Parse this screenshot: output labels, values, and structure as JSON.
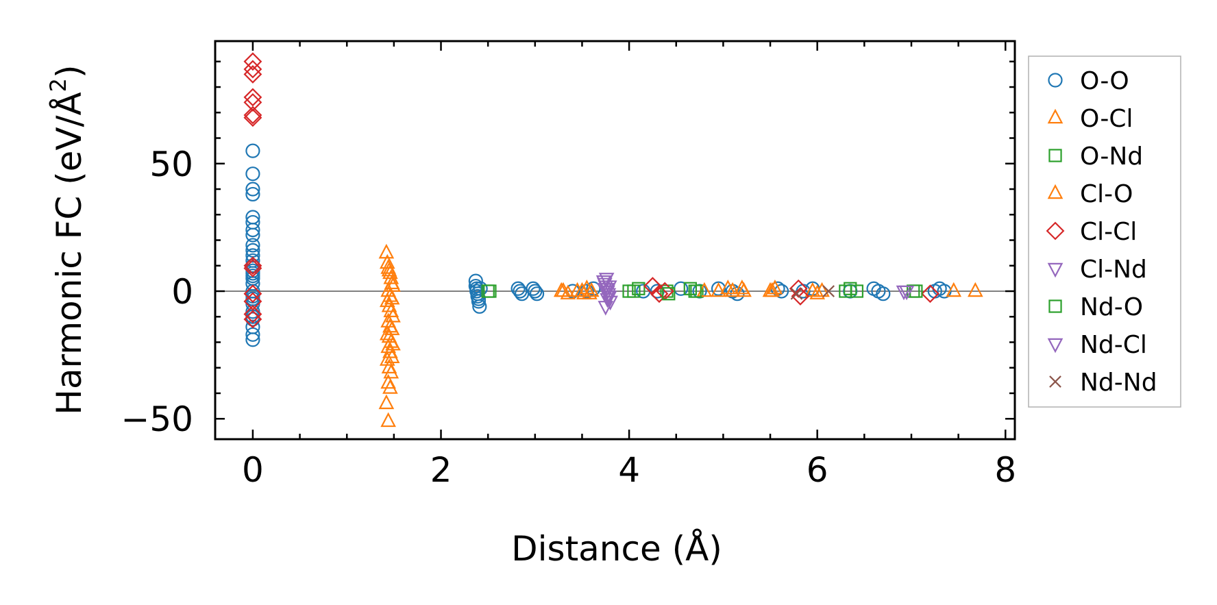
{
  "chart_data": {
    "type": "scatter",
    "title": "",
    "xlabel": "Distance (Å)",
    "ylabel": "Harmonic FC (eV/Å²)",
    "ylabel_main": "Harmonic FC (eV/Å",
    "ylabel_sup": "2",
    "ylabel_close": ")",
    "xlim": [
      -0.4,
      8.1
    ],
    "ylim": [
      -58,
      98
    ],
    "xticks": [
      0,
      2,
      4,
      6,
      8
    ],
    "yticks": [
      -50,
      0,
      50
    ],
    "xtick_labels": [
      "0",
      "2",
      "4",
      "6",
      "8"
    ],
    "ytick_labels": [
      "−50",
      "0",
      "50"
    ],
    "xminor_step": 0.5,
    "yminor_step": 10,
    "zero_line": true,
    "legend_position": "outside-right",
    "series": [
      {
        "name": "O-O",
        "marker": "circle",
        "color": "#1f77b4",
        "x": [
          0,
          0,
          0,
          0,
          0,
          0,
          0,
          0,
          0,
          0,
          0,
          0,
          0,
          0,
          0,
          0,
          0,
          0,
          0,
          0,
          0,
          0,
          0,
          0,
          0,
          0,
          0,
          0,
          2.37,
          2.37,
          2.38,
          2.38,
          2.39,
          2.39,
          2.4,
          2.4,
          2.41,
          2.42,
          2.82,
          2.84,
          2.86,
          2.98,
          3.0,
          3.02,
          3.4,
          3.55,
          3.62,
          4.15,
          4.3,
          4.55,
          4.75,
          4.95,
          5.1,
          5.15,
          5.58,
          5.62,
          5.85,
          5.95,
          6.35,
          6.6,
          6.65,
          6.7,
          7.25,
          7.3,
          7.35
        ],
        "y": [
          55,
          46,
          40,
          38,
          29,
          27,
          24,
          22,
          18,
          16,
          14,
          12,
          10,
          8,
          7,
          6,
          5,
          3,
          0,
          -2,
          -3,
          -5,
          -8,
          -10,
          -11,
          -14,
          -17,
          -19,
          4,
          2,
          1,
          0,
          -1,
          -2,
          -3,
          -4,
          -6,
          1,
          1,
          0,
          -1,
          1,
          0,
          -1,
          0,
          0,
          1,
          0,
          0,
          1,
          0,
          1,
          0,
          -1,
          1,
          0,
          0,
          1,
          0,
          1,
          0,
          -1,
          0,
          1,
          0
        ]
      },
      {
        "name": "O-Cl",
        "marker": "triangle-up",
        "color": "#ff7f0e",
        "x": [
          1.42,
          1.43,
          1.44,
          1.45,
          1.46,
          1.47,
          1.48,
          1.49,
          1.44,
          1.46,
          1.48,
          1.43,
          1.45,
          1.47,
          1.49,
          1.44,
          1.46,
          1.48,
          1.43,
          1.45,
          1.47,
          1.49,
          1.44,
          1.46,
          1.48,
          1.43,
          1.45,
          1.47,
          1.44,
          1.46,
          1.42,
          1.44,
          3.3,
          3.35,
          3.5,
          3.55,
          3.58,
          3.6,
          4.95,
          5.05,
          5.22,
          5.5,
          5.55,
          5.95,
          6.0
        ],
        "y": [
          15,
          11,
          9,
          8,
          7,
          5,
          3,
          2,
          0,
          -2,
          -3,
          -4,
          -6,
          -8,
          -10,
          -12,
          -14,
          -15,
          -17,
          -18,
          -20,
          -21,
          -22,
          -24,
          -26,
          -27,
          -30,
          -32,
          -36,
          -38,
          -44,
          -51,
          0,
          -1,
          0,
          1,
          -1,
          0,
          0,
          1,
          0,
          0,
          1,
          0,
          -1
        ]
      },
      {
        "name": "O-Nd",
        "marker": "square",
        "color": "#2ca02c",
        "x": [
          2.5,
          4.0,
          4.1,
          4.4,
          4.65,
          4.72,
          6.3,
          6.42,
          7.02
        ],
        "y": [
          0,
          0,
          1,
          0,
          1,
          0,
          0,
          0,
          0
        ]
      },
      {
        "name": "Cl-O",
        "marker": "triangle-up",
        "color": "#ff7f0e",
        "x": [
          3.28,
          3.45,
          3.52,
          4.8,
          5.1,
          5.2,
          5.52,
          6.05,
          7.45,
          7.68
        ],
        "y": [
          0,
          0,
          -1,
          0,
          0,
          1,
          0,
          0,
          0,
          0
        ]
      },
      {
        "name": "Cl-Cl",
        "marker": "diamond",
        "color": "#d62728",
        "x": [
          0,
          0,
          0,
          0,
          0,
          0,
          0,
          0,
          0,
          0,
          0,
          0,
          0,
          4.25,
          4.32,
          4.38,
          5.8,
          5.82,
          7.2
        ],
        "y": [
          90,
          87,
          85,
          76,
          74,
          69,
          68,
          10,
          9,
          -1,
          -4,
          -9,
          -11,
          2,
          -1,
          0,
          1,
          -2,
          -1
        ]
      },
      {
        "name": "Cl-Nd",
        "marker": "triangle-down",
        "color": "#9467bd",
        "x": [
          3.73,
          3.74,
          3.75,
          3.76,
          3.77,
          3.78,
          3.79,
          3.8,
          3.75,
          3.77,
          3.79,
          3.76,
          6.92
        ],
        "y": [
          4,
          3,
          2,
          1,
          0,
          -1,
          -2,
          -4,
          -6,
          -3,
          2,
          5,
          0
        ]
      },
      {
        "name": "Nd-O",
        "marker": "square",
        "color": "#2ca02c",
        "x": [
          2.52,
          4.05,
          4.42,
          4.7,
          6.35,
          7.05
        ],
        "y": [
          0,
          0,
          -1,
          0,
          1,
          0
        ]
      },
      {
        "name": "Nd-Cl",
        "marker": "triangle-down",
        "color": "#9467bd",
        "x": [
          3.74,
          3.78,
          6.95
        ],
        "y": [
          1,
          -2,
          0
        ]
      },
      {
        "name": "Nd-Nd",
        "marker": "x",
        "color": "#8c564b",
        "x": [
          5.78,
          6.12
        ],
        "y": [
          -1,
          0
        ]
      }
    ]
  }
}
